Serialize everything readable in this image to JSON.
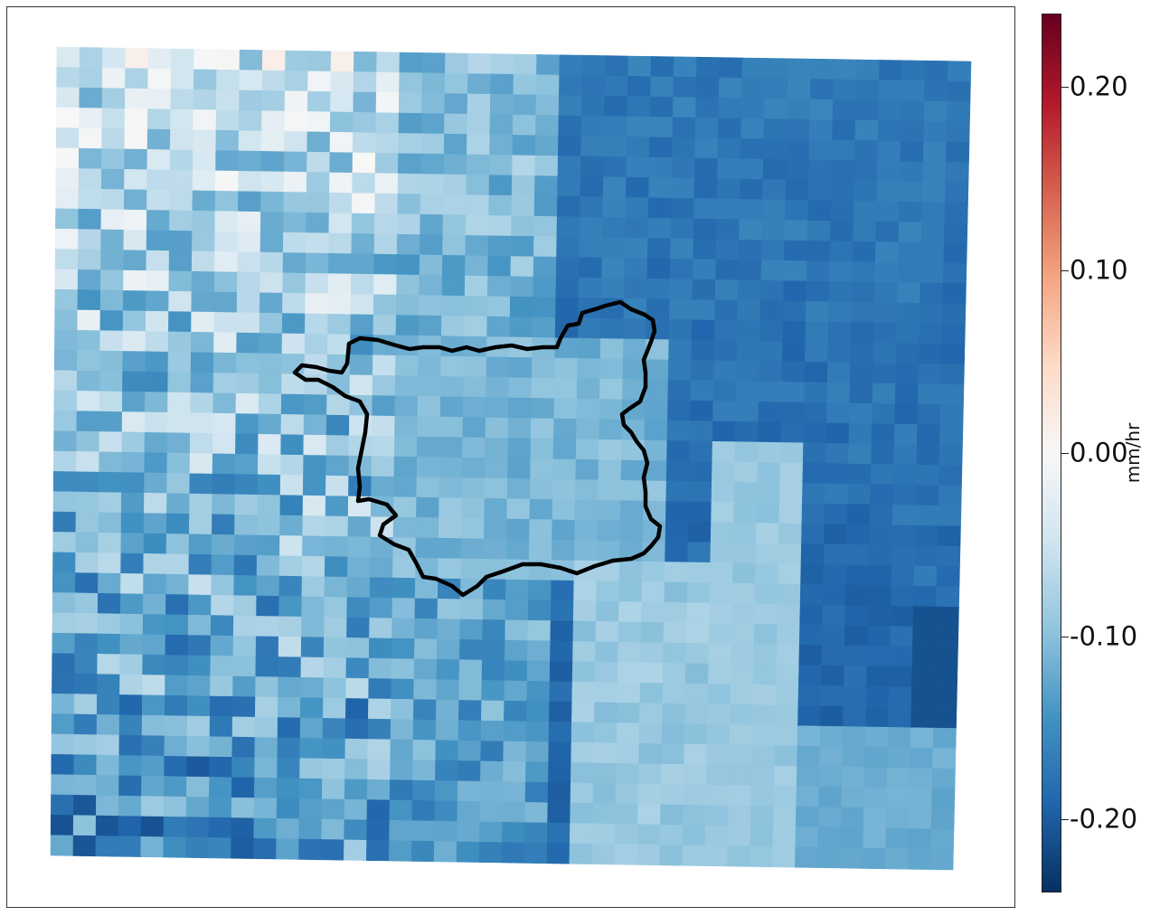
{
  "map": {
    "title": "",
    "rows": 40,
    "cols": 40,
    "seed": 7
  },
  "colorbar": {
    "unit_label": "mm/hr",
    "vmin": -0.24,
    "vmax": 0.24,
    "colormap": "RdBu_r",
    "stops": [
      "#053061",
      "#2166ac",
      "#4393c3",
      "#92c5de",
      "#d1e5f0",
      "#f7f7f7",
      "#fddbc7",
      "#f4a582",
      "#d6604d",
      "#b2182b",
      "#67001f"
    ],
    "ticks": [
      {
        "value": 0.2,
        "label": "0.20"
      },
      {
        "value": 0.1,
        "label": "0.10"
      },
      {
        "value": 0.0,
        "label": "0.00"
      },
      {
        "value": -0.1,
        "label": "-0.10"
      },
      {
        "value": -0.2,
        "label": "-0.20"
      }
    ]
  },
  "boundary": {
    "color": "#000000",
    "name": ""
  }
}
